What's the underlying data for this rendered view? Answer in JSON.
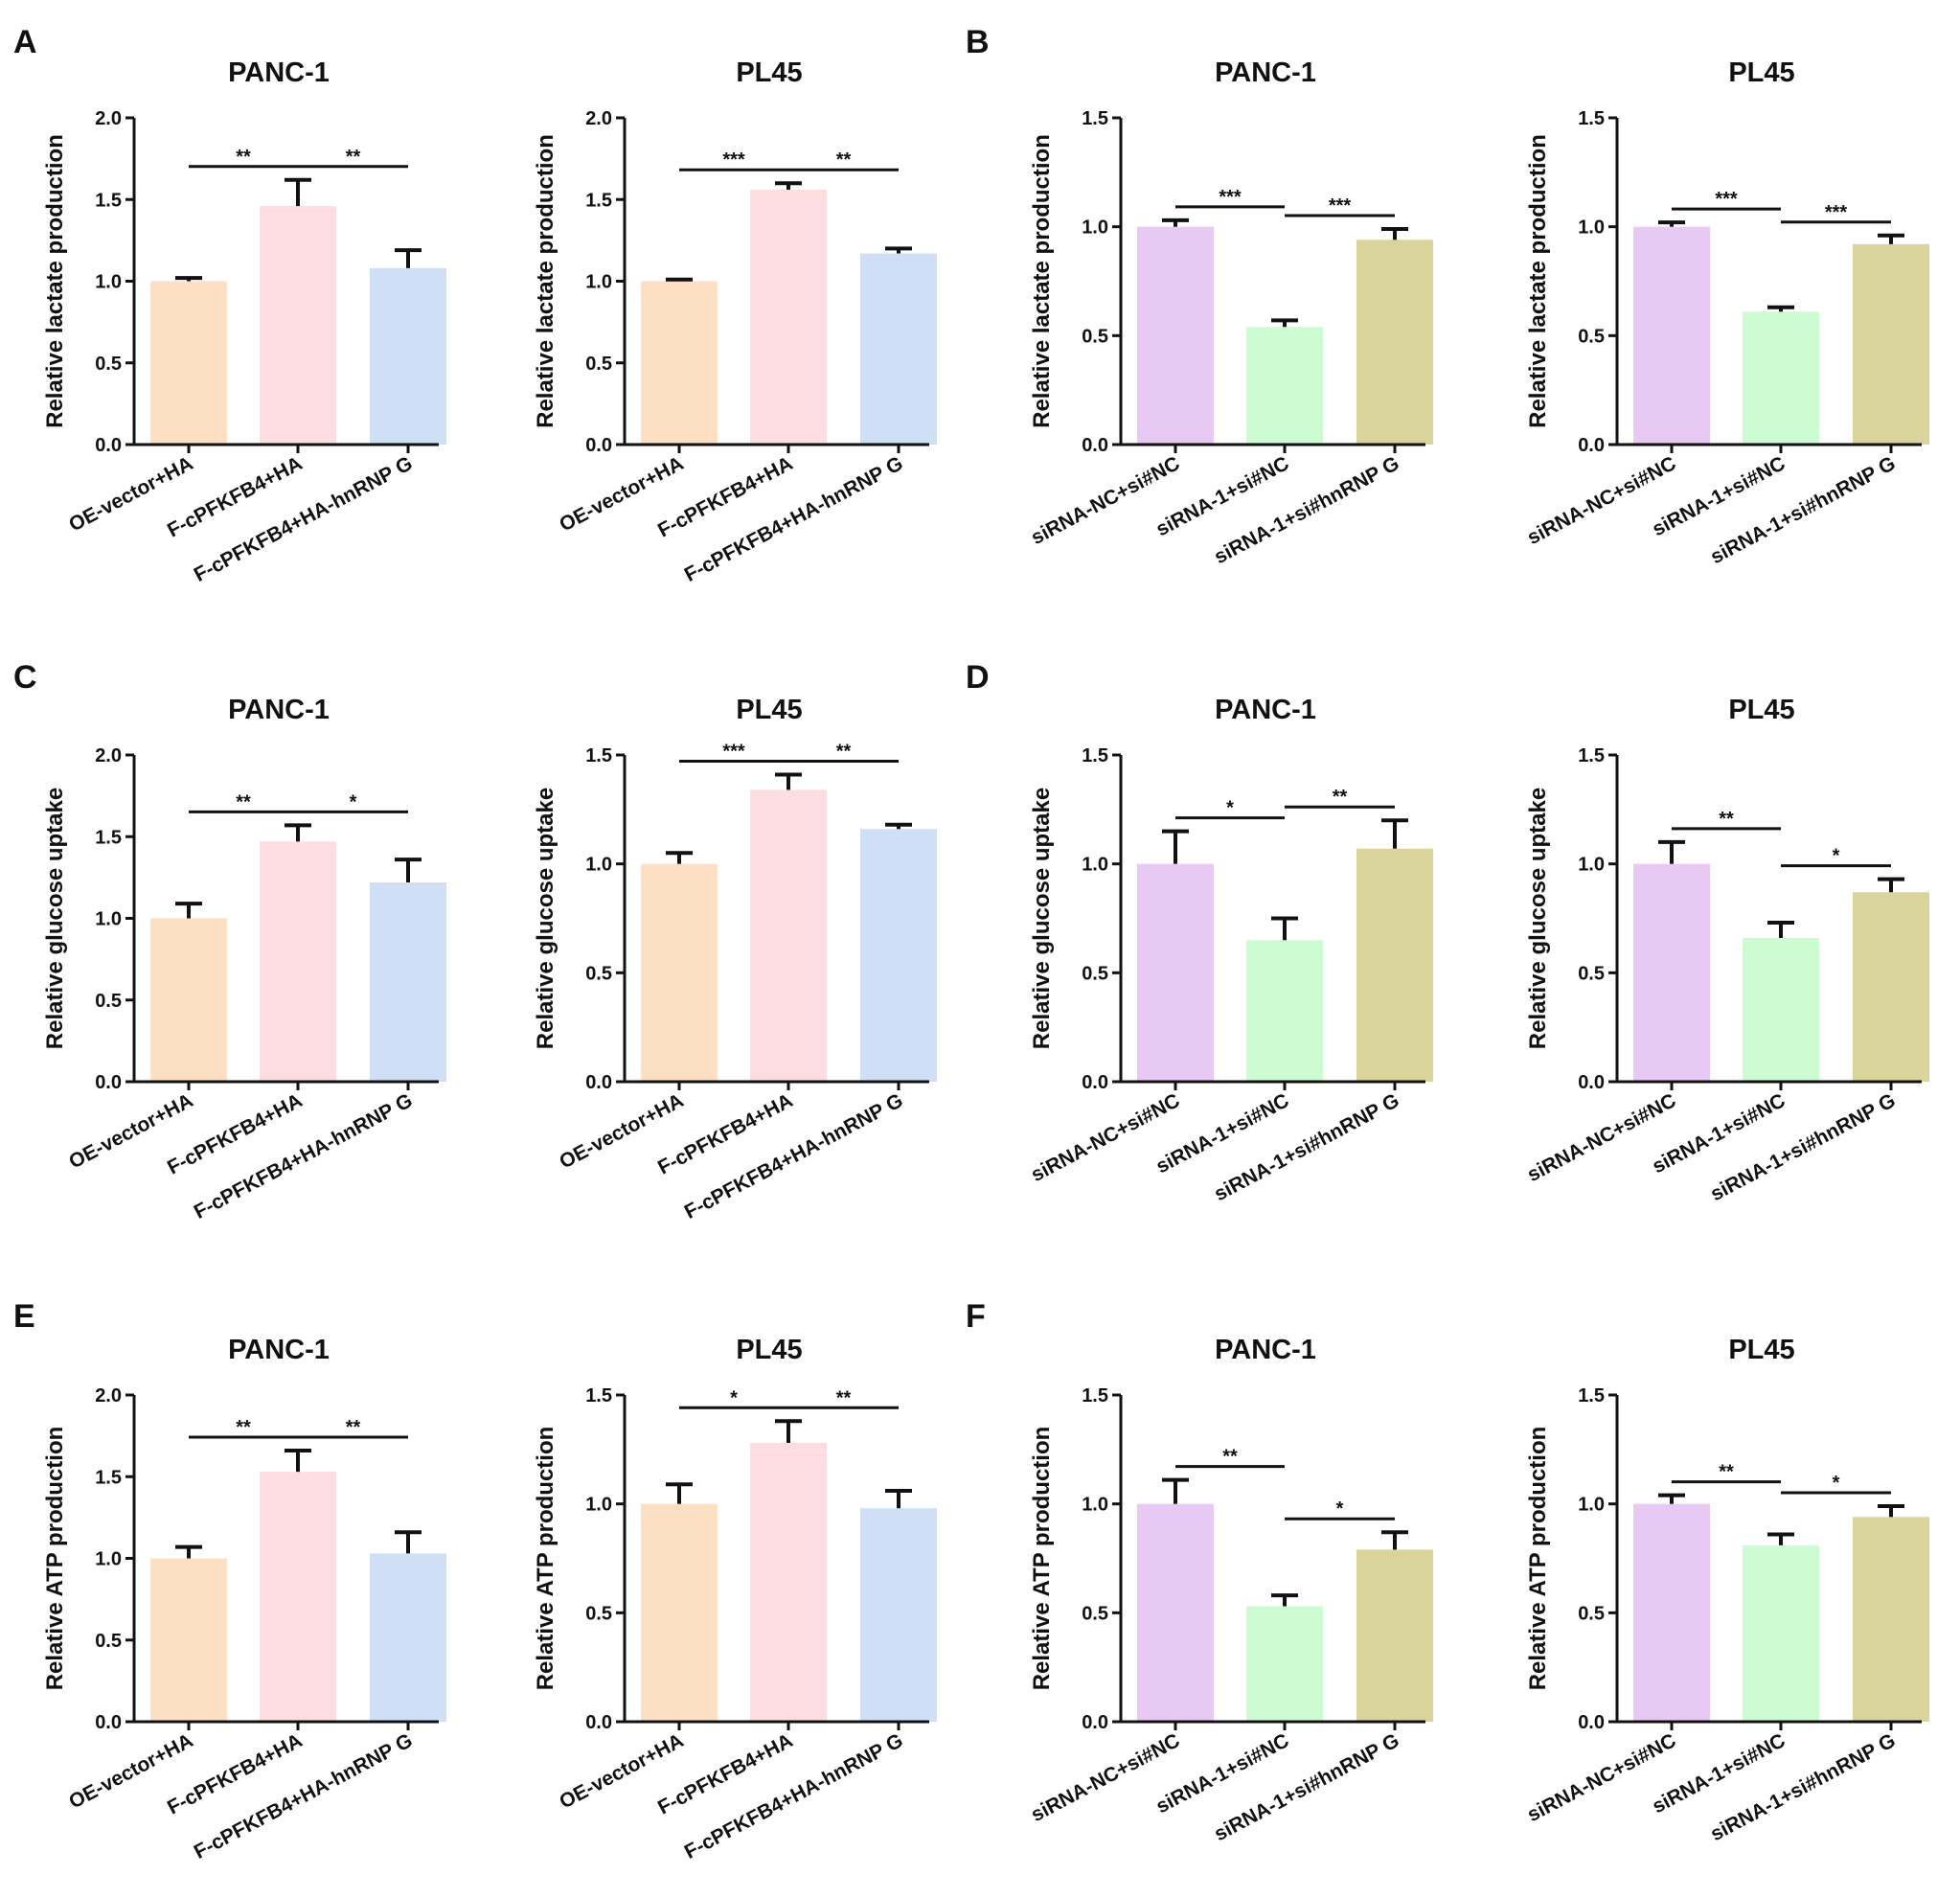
{
  "colors": {
    "OE-vector+HA": "#fde0c3",
    "F-cPFKFB4+HA": "#fddde0",
    "F-cPFKFB4+HA-hnRNP G": "#cfe0f6",
    "siRNA-NC+si#NC": "#e8c9f4",
    "siRNA-1+si#NC": "#cdfcd2",
    "siRNA-1+si#hnRNP G": "#d8d49c"
  },
  "chart_data": [
    {
      "panel": "A",
      "type": "bar",
      "title": "PANC-1",
      "ylabel": "Relative lactate production",
      "ylim": [
        0,
        2.0
      ],
      "yticks": [
        "0.0",
        "0.5",
        "1.0",
        "1.5",
        "2.0"
      ],
      "categories": [
        "OE-vector+HA",
        "F-cPFKFB4+HA",
        "F-cPFKFB4+HA-hnRNP G"
      ],
      "values": [
        1.0,
        1.46,
        1.08
      ],
      "errors": [
        0.02,
        0.16,
        0.11
      ],
      "significance": [
        {
          "from": 0,
          "to": 1,
          "label": "**"
        },
        {
          "from": 1,
          "to": 2,
          "label": "**"
        }
      ]
    },
    {
      "panel": "",
      "type": "bar",
      "title": "PL45",
      "ylabel": "Relative lactate production",
      "ylim": [
        0,
        2.0
      ],
      "yticks": [
        "0.0",
        "0.5",
        "1.0",
        "1.5",
        "2.0"
      ],
      "categories": [
        "OE-vector+HA",
        "F-cPFKFB4+HA",
        "F-cPFKFB4+HA-hnRNP G"
      ],
      "values": [
        1.0,
        1.56,
        1.17
      ],
      "errors": [
        0.01,
        0.04,
        0.03
      ],
      "significance": [
        {
          "from": 0,
          "to": 1,
          "label": "***"
        },
        {
          "from": 1,
          "to": 2,
          "label": "**"
        }
      ]
    },
    {
      "panel": "B",
      "type": "bar",
      "title": "PANC-1",
      "ylabel": "Relative lactate production",
      "ylim": [
        0,
        1.5
      ],
      "yticks": [
        "0.0",
        "0.5",
        "1.0",
        "1.5"
      ],
      "categories": [
        "siRNA-NC+si#NC",
        "siRNA-1+si#NC",
        "siRNA-1+si#hnRNP G"
      ],
      "values": [
        1.0,
        0.54,
        0.94
      ],
      "errors": [
        0.03,
        0.03,
        0.05
      ],
      "significance": [
        {
          "from": 0,
          "to": 1,
          "label": "***"
        },
        {
          "from": 1,
          "to": 2,
          "label": "***"
        }
      ]
    },
    {
      "panel": "",
      "type": "bar",
      "title": "PL45",
      "ylabel": "Relative lactate production",
      "ylim": [
        0,
        1.5
      ],
      "yticks": [
        "0.0",
        "0.5",
        "1.0",
        "1.5"
      ],
      "categories": [
        "siRNA-NC+si#NC",
        "siRNA-1+si#NC",
        "siRNA-1+si#hnRNP G"
      ],
      "values": [
        1.0,
        0.61,
        0.92
      ],
      "errors": [
        0.02,
        0.02,
        0.04
      ],
      "significance": [
        {
          "from": 0,
          "to": 1,
          "label": "***"
        },
        {
          "from": 1,
          "to": 2,
          "label": "***"
        }
      ]
    },
    {
      "panel": "C",
      "type": "bar",
      "title": "PANC-1",
      "ylabel": "Relative glucose uptake",
      "ylim": [
        0,
        2.0
      ],
      "yticks": [
        "0.0",
        "0.5",
        "1.0",
        "1.5",
        "2.0"
      ],
      "categories": [
        "OE-vector+HA",
        "F-cPFKFB4+HA",
        "F-cPFKFB4+HA-hnRNP G"
      ],
      "values": [
        1.0,
        1.47,
        1.22
      ],
      "errors": [
        0.09,
        0.1,
        0.14
      ],
      "significance": [
        {
          "from": 0,
          "to": 1,
          "label": "**"
        },
        {
          "from": 1,
          "to": 2,
          "label": "*"
        }
      ]
    },
    {
      "panel": "",
      "type": "bar",
      "title": "PL45",
      "ylabel": "Relative glucose uptake",
      "ylim": [
        0,
        1.5
      ],
      "yticks": [
        "0.0",
        "0.5",
        "1.0",
        "1.5"
      ],
      "categories": [
        "OE-vector+HA",
        "F-cPFKFB4+HA",
        "F-cPFKFB4+HA-hnRNP G"
      ],
      "values": [
        1.0,
        1.34,
        1.16
      ],
      "errors": [
        0.05,
        0.07,
        0.02
      ],
      "significance": [
        {
          "from": 0,
          "to": 1,
          "label": "***"
        },
        {
          "from": 1,
          "to": 2,
          "label": "**"
        }
      ]
    },
    {
      "panel": "D",
      "type": "bar",
      "title": "PANC-1",
      "ylabel": "Relative glucose uptake",
      "ylim": [
        0,
        1.5
      ],
      "yticks": [
        "0.0",
        "0.5",
        "1.0",
        "1.5"
      ],
      "categories": [
        "siRNA-NC+si#NC",
        "siRNA-1+si#NC",
        "siRNA-1+si#hnRNP G"
      ],
      "values": [
        1.0,
        0.65,
        1.07
      ],
      "errors": [
        0.15,
        0.1,
        0.13
      ],
      "significance": [
        {
          "from": 0,
          "to": 1,
          "label": "*"
        },
        {
          "from": 1,
          "to": 2,
          "label": "**"
        }
      ]
    },
    {
      "panel": "",
      "type": "bar",
      "title": "PL45",
      "ylabel": "Relative glucose uptake",
      "ylim": [
        0,
        1.5
      ],
      "yticks": [
        "0.0",
        "0.5",
        "1.0",
        "1.5"
      ],
      "categories": [
        "siRNA-NC+si#NC",
        "siRNA-1+si#NC",
        "siRNA-1+si#hnRNP G"
      ],
      "values": [
        1.0,
        0.66,
        0.87
      ],
      "errors": [
        0.1,
        0.07,
        0.06
      ],
      "significance": [
        {
          "from": 0,
          "to": 1,
          "label": "**"
        },
        {
          "from": 1,
          "to": 2,
          "label": "*"
        }
      ]
    },
    {
      "panel": "E",
      "type": "bar",
      "title": "PANC-1",
      "ylabel": "Relative ATP production",
      "ylim": [
        0,
        2.0
      ],
      "yticks": [
        "0.0",
        "0.5",
        "1.0",
        "1.5",
        "2.0"
      ],
      "categories": [
        "OE-vector+HA",
        "F-cPFKFB4+HA",
        "F-cPFKFB4+HA-hnRNP G"
      ],
      "values": [
        1.0,
        1.53,
        1.03
      ],
      "errors": [
        0.07,
        0.13,
        0.13
      ],
      "significance": [
        {
          "from": 0,
          "to": 1,
          "label": "**"
        },
        {
          "from": 1,
          "to": 2,
          "label": "**"
        }
      ]
    },
    {
      "panel": "",
      "type": "bar",
      "title": "PL45",
      "ylabel": "Relative ATP production",
      "ylim": [
        0,
        1.5
      ],
      "yticks": [
        "0.0",
        "0.5",
        "1.0",
        "1.5"
      ],
      "categories": [
        "OE-vector+HA",
        "F-cPFKFB4+HA",
        "F-cPFKFB4+HA-hnRNP G"
      ],
      "values": [
        1.0,
        1.28,
        0.98
      ],
      "errors": [
        0.09,
        0.1,
        0.08
      ],
      "significance": [
        {
          "from": 0,
          "to": 1,
          "label": "*"
        },
        {
          "from": 1,
          "to": 2,
          "label": "**"
        }
      ]
    },
    {
      "panel": "F",
      "type": "bar",
      "title": "PANC-1",
      "ylabel": "Relative ATP production",
      "ylim": [
        0,
        1.5
      ],
      "yticks": [
        "0.0",
        "0.5",
        "1.0",
        "1.5"
      ],
      "categories": [
        "siRNA-NC+si#NC",
        "siRNA-1+si#NC",
        "siRNA-1+si#hnRNP G"
      ],
      "values": [
        1.0,
        0.53,
        0.79
      ],
      "errors": [
        0.11,
        0.05,
        0.08
      ],
      "significance": [
        {
          "from": 0,
          "to": 1,
          "label": "**"
        },
        {
          "from": 1,
          "to": 2,
          "label": "*"
        }
      ]
    },
    {
      "panel": "",
      "type": "bar",
      "title": "PL45",
      "ylabel": "Relative ATP production",
      "ylim": [
        0,
        1.5
      ],
      "yticks": [
        "0.0",
        "0.5",
        "1.0",
        "1.5"
      ],
      "categories": [
        "siRNA-NC+si#NC",
        "siRNA-1+si#NC",
        "siRNA-1+si#hnRNP G"
      ],
      "values": [
        1.0,
        0.81,
        0.94
      ],
      "errors": [
        0.04,
        0.05,
        0.05
      ],
      "significance": [
        {
          "from": 0,
          "to": 1,
          "label": "**"
        },
        {
          "from": 1,
          "to": 2,
          "label": "*"
        }
      ]
    }
  ]
}
